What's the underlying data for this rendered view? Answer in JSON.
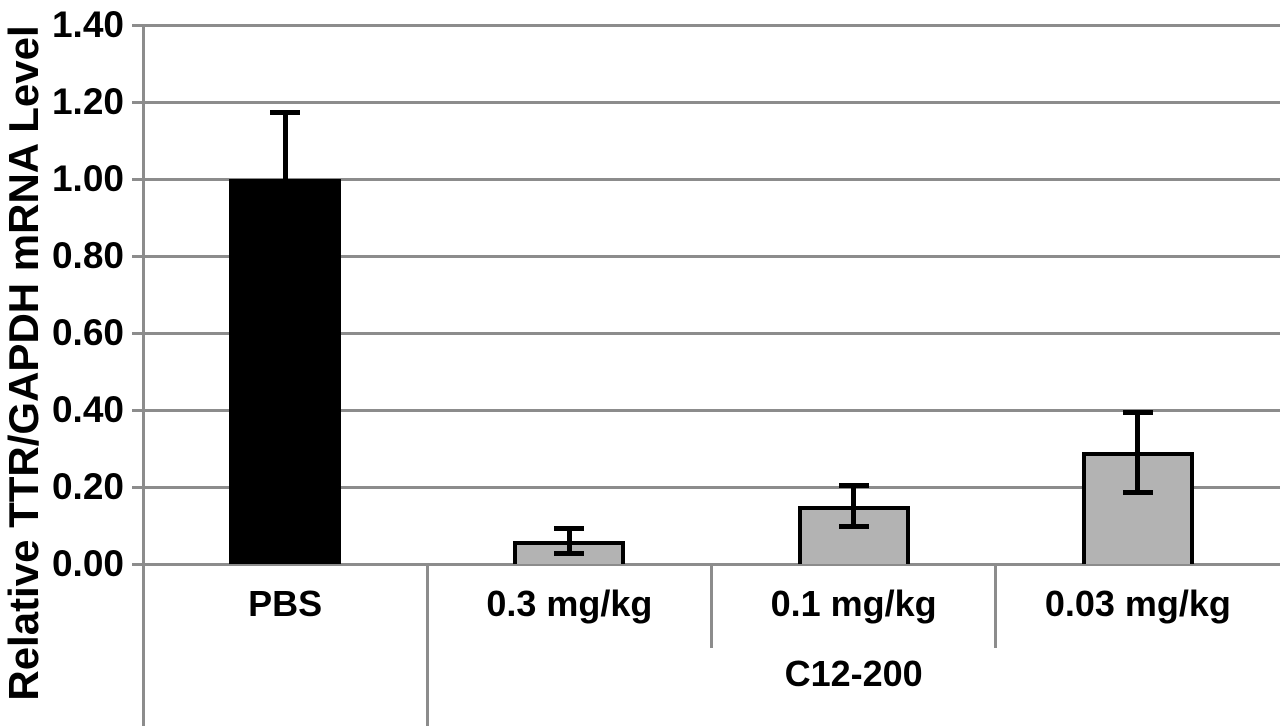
{
  "chart_data": {
    "type": "bar",
    "title": "",
    "xlabel": "",
    "ylabel": "Relative TTR/GAPDH mRNA Level",
    "categories": [
      "PBS",
      "0.3 mg/kg",
      "0.1 mg/kg",
      "0.03 mg/kg"
    ],
    "values": [
      1.0,
      0.06,
      0.15,
      0.29
    ],
    "errors": [
      0.18,
      0.04,
      0.06,
      0.11
    ],
    "bar_fill": [
      "#000000",
      "#b3b3b3",
      "#b3b3b3",
      "#b3b3b3"
    ],
    "group": {
      "label": "C12-200",
      "start_index": 1,
      "end_index": 3
    },
    "ylim": [
      0,
      1.4
    ],
    "yticks": [
      0.0,
      0.2,
      0.4,
      0.6,
      0.8,
      1.0,
      1.2,
      1.4
    ],
    "ytick_labels": [
      "0.00",
      "0.20",
      "0.40",
      "0.60",
      "0.80",
      "1.00",
      "1.20",
      "1.40"
    ],
    "grid": true,
    "legend": null,
    "colors": {
      "axis_and_grid": "#8c8c8c",
      "error_bar": "#000000",
      "bar_border": "#000000",
      "text": "#000000",
      "background": "#ffffff"
    }
  }
}
